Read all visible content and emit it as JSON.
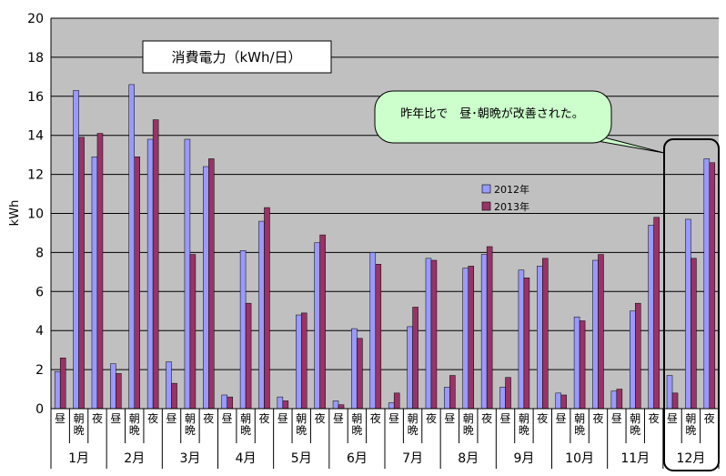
{
  "chart_data": {
    "type": "bar",
    "title": "消費電力（kWh/日）",
    "ylabel": "kWh",
    "ylim": [
      0,
      20
    ],
    "yticks": [
      "0",
      "2",
      "4",
      "6",
      "8",
      "10",
      "12",
      "14",
      "16",
      "18",
      "20"
    ],
    "grid": true,
    "legend_position": "right",
    "sub_categories": [
      "昼",
      "朝晩",
      "夜"
    ],
    "months": [
      "1月",
      "2月",
      "3月",
      "4月",
      "5月",
      "6月",
      "7月",
      "8月",
      "9月",
      "10月",
      "11月",
      "12月"
    ],
    "series": [
      {
        "name": "2012年",
        "color": "#9999ff",
        "values": [
          1.9,
          16.3,
          12.9,
          2.3,
          16.6,
          13.8,
          2.4,
          13.8,
          12.4,
          0.7,
          8.1,
          9.6,
          0.6,
          4.8,
          8.5,
          0.4,
          4.1,
          8.0,
          0.3,
          4.2,
          7.7,
          1.1,
          7.2,
          7.9,
          1.1,
          7.1,
          7.3,
          0.8,
          4.7,
          7.6,
          0.9,
          5.0,
          9.4,
          1.7,
          9.7,
          12.8
        ]
      },
      {
        "name": "2013年",
        "color": "#993366",
        "values": [
          2.6,
          13.9,
          14.1,
          1.8,
          12.9,
          14.8,
          1.3,
          7.9,
          12.8,
          0.6,
          5.4,
          10.3,
          0.4,
          4.9,
          8.9,
          0.2,
          3.6,
          7.4,
          0.8,
          5.2,
          7.6,
          1.7,
          7.3,
          8.3,
          1.6,
          6.7,
          7.7,
          0.7,
          4.5,
          7.9,
          1.0,
          5.4,
          9.8,
          0.8,
          7.7,
          12.6
        ]
      }
    ]
  },
  "annotation": {
    "callout_text": "昨年比で　昼･朝晩が改善された。"
  },
  "colors": {
    "plot_background": "#c0c0c0",
    "gridline": "#000000",
    "callout_fill": "#ccffcc"
  }
}
